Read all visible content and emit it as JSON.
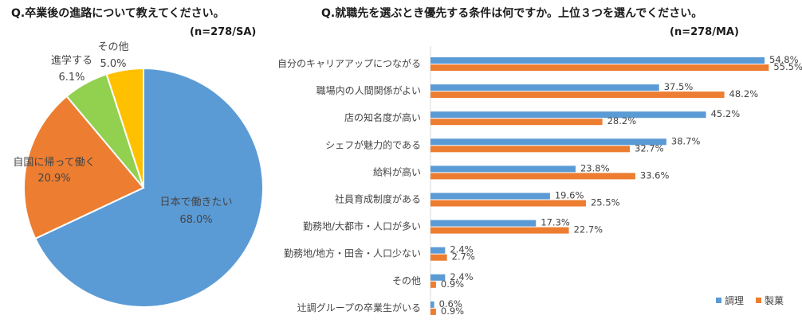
{
  "chart_data": [
    {
      "type": "pie",
      "title": "Q.卒業後の進路について教えてください。",
      "subtitle": "(n=278/SA)",
      "unit": "%",
      "slices": [
        {
          "label": "日本で働きたい",
          "value": 68.0,
          "value_label": "68.0%",
          "color": "#5b9bd5"
        },
        {
          "label": "自国に帰って働く",
          "value": 20.9,
          "value_label": "20.9%",
          "color": "#ed7d31"
        },
        {
          "label": "進学する",
          "value": 6.1,
          "value_label": "6.1%",
          "color": "#92d050"
        },
        {
          "label": "その他",
          "value": 5.0,
          "value_label": "5.0%",
          "color": "#ffc000"
        }
      ]
    },
    {
      "type": "bar",
      "orientation": "horizontal",
      "title": "Q.就職先を選ぶとき優先する条件は何ですか。上位３つを選んでください。",
      "subtitle": "(n=278/MA)",
      "unit": "%",
      "legend_position": "bottom-right",
      "xlim": [
        0,
        60
      ],
      "categories": [
        "自分のキャリアアップにつながる",
        "職場内の人間関係がよい",
        "店の知名度が高い",
        "シェフが魅力的である",
        "給料が高い",
        "社員育成制度がある",
        "勤務地/大都市・人口が多い",
        "勤務地/地方・田舎・人口少ない",
        "その他",
        "辻調グループの卒業生がいる"
      ],
      "series": [
        {
          "name": "調理",
          "color": "#5b9bd5",
          "values": [
            54.8,
            37.5,
            45.2,
            38.7,
            23.8,
            19.6,
            17.3,
            2.4,
            2.4,
            0.6
          ],
          "value_labels": [
            "54.8%",
            "37.5%",
            "45.2%",
            "38.7%",
            "23.8%",
            "19.6%",
            "17.3%",
            "2.4%",
            "2.4%",
            "0.6%"
          ]
        },
        {
          "name": "製菓",
          "color": "#ed7d31",
          "values": [
            55.5,
            48.2,
            28.2,
            32.7,
            33.6,
            25.5,
            22.7,
            2.7,
            0.9,
            0.9
          ],
          "value_labels": [
            "55.5%",
            "48.2%",
            "28.2%",
            "32.7%",
            "33.6%",
            "25.5%",
            "22.7%",
            "2.7%",
            "0.9%",
            "0.9%"
          ]
        }
      ]
    }
  ]
}
